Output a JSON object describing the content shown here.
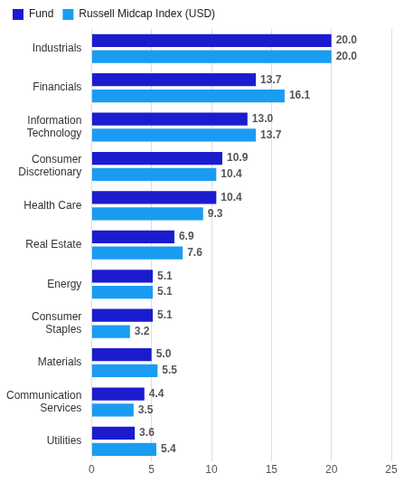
{
  "chart_data": {
    "type": "bar",
    "orientation": "horizontal",
    "categories": [
      "Industrials",
      "Financials",
      "Information Technology",
      "Consumer Discretionary",
      "Health Care",
      "Real Estate",
      "Energy",
      "Consumer Staples",
      "Materials",
      "Communication Services",
      "Utilities"
    ],
    "series": [
      {
        "name": "Fund",
        "color": "#1c1ccf",
        "values": [
          20.0,
          13.7,
          13.0,
          10.9,
          10.4,
          6.9,
          5.1,
          5.1,
          5.0,
          4.4,
          3.6
        ],
        "value_labels": [
          "20.0",
          "13.7",
          "13.0",
          "10.9",
          "10.4",
          "6.9",
          "5.1",
          "5.1",
          "5.0",
          "4.4",
          "3.6"
        ]
      },
      {
        "name": "Russell Midcap Index (USD)",
        "color": "#1a9cf2",
        "values": [
          20.0,
          16.1,
          13.7,
          10.4,
          9.3,
          7.6,
          5.1,
          3.2,
          5.5,
          3.5,
          5.4
        ],
        "value_labels": [
          "20.0",
          "16.1",
          "13.7",
          "10.4",
          "9.3",
          "7.6",
          "5.1",
          "3.2",
          "5.5",
          "3.5",
          "5.4"
        ]
      }
    ],
    "xlim": [
      0,
      25
    ],
    "xticks": [
      0,
      5,
      10,
      15,
      20,
      25
    ],
    "grid": true,
    "legend": "top-left",
    "data_labels": true
  }
}
